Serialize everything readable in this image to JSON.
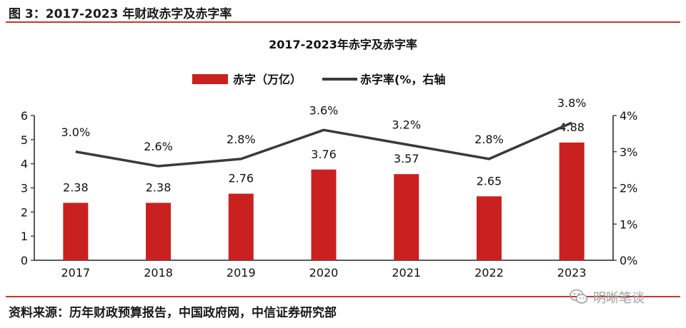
{
  "figure": {
    "label": "图 3：2017-2023 年财政赤字及赤字率",
    "source": "资料来源：历年财政预算报告，中国政府网，中信证券研究部",
    "watermark": "明晰笔谈"
  },
  "chart_data": {
    "type": "bar",
    "title": "2017-2023年赤字及赤字率",
    "categories": [
      "2017",
      "2018",
      "2019",
      "2020",
      "2021",
      "2022",
      "2023"
    ],
    "series": [
      {
        "name": "赤字（万亿）",
        "type": "bar",
        "axis": "left",
        "color": "#c8211f",
        "values": [
          2.38,
          2.38,
          2.76,
          3.76,
          3.57,
          2.65,
          4.88
        ],
        "labels": [
          "2.38",
          "2.38",
          "2.76",
          "3.76",
          "3.57",
          "2.65",
          "4.88"
        ]
      },
      {
        "name": "赤字率(%，右轴",
        "type": "line",
        "axis": "right",
        "color": "#3a3a3a",
        "values": [
          3.0,
          2.6,
          2.8,
          3.6,
          3.2,
          2.8,
          3.8
        ],
        "labels": [
          "3.0%",
          "2.6%",
          "2.8%",
          "3.6%",
          "3.2%",
          "2.8%",
          "3.8%"
        ]
      }
    ],
    "y_left": {
      "min": 0,
      "max": 6,
      "ticks": [
        "0",
        "1",
        "2",
        "3",
        "4",
        "5",
        "6"
      ]
    },
    "y_right": {
      "min": 0,
      "max": 4,
      "ticks": [
        "0%",
        "1%",
        "2%",
        "3%",
        "4%"
      ]
    },
    "grid": false,
    "legend_position": "top-center"
  }
}
